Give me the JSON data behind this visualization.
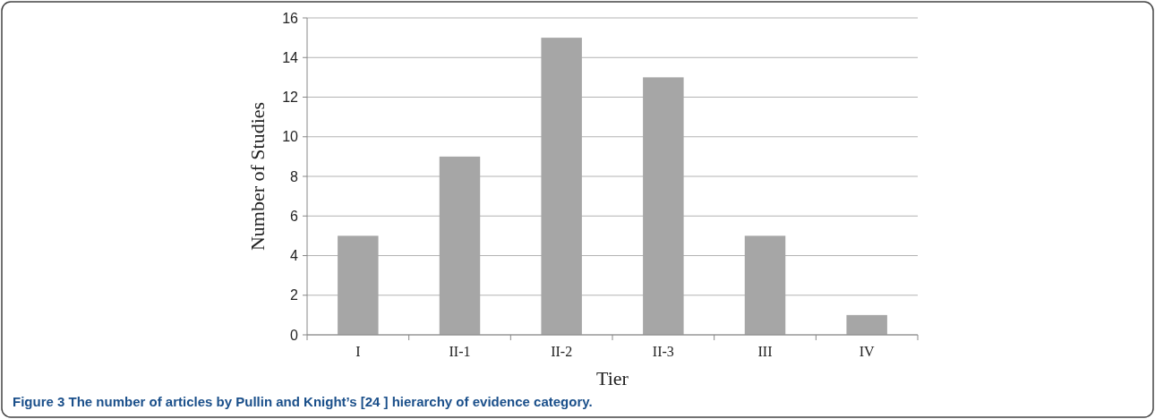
{
  "chart_data": {
    "type": "bar",
    "xlabel": "Tier",
    "ylabel": "Number of Studies",
    "categories": [
      "I",
      "II-1",
      "II-2",
      "II-3",
      "III",
      "IV"
    ],
    "values": [
      5,
      9,
      15,
      13,
      5,
      1
    ],
    "color": "#a6a6a6",
    "ylim": [
      0,
      16
    ],
    "yticks": [
      0,
      2,
      4,
      6,
      8,
      10,
      12,
      14,
      16
    ],
    "grid": "y",
    "annotations": [
      "Figure 3 The number of articles by Pullin and Knight’s [24 ] hierarchy of evidence category."
    ]
  }
}
